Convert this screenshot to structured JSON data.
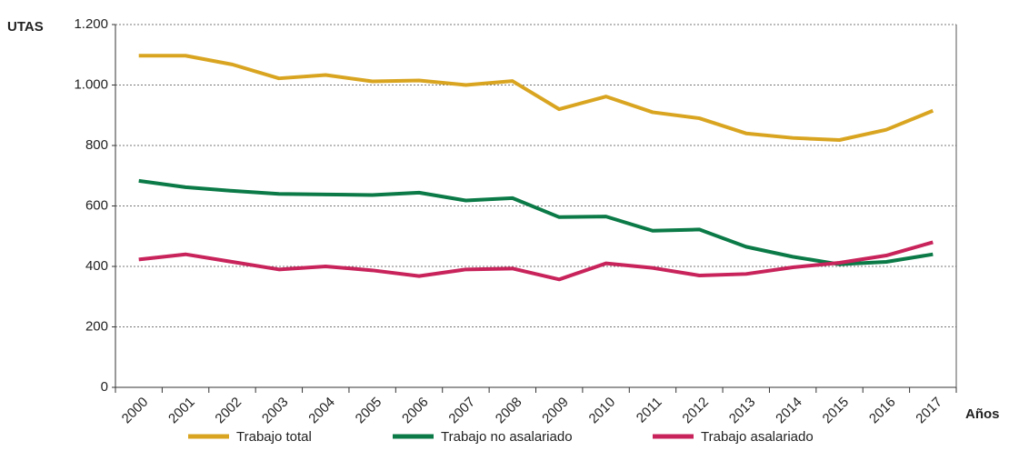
{
  "chart_data": {
    "type": "line",
    "ylabel": "UTAS",
    "xlabel": "Años",
    "categories": [
      "2000",
      "2001",
      "2002",
      "2003",
      "2004",
      "2005",
      "2006",
      "2007",
      "2008",
      "2009",
      "2010",
      "2011",
      "2012",
      "2013",
      "2014",
      "2015",
      "2016",
      "2017"
    ],
    "series": [
      {
        "name": "Trabajo total",
        "color": "#d9a521",
        "values": [
          1097,
          1097,
          1068,
          1022,
          1033,
          1012,
          1015,
          1000,
          1013,
          920,
          962,
          910,
          890,
          840,
          825,
          818,
          852,
          915
        ]
      },
      {
        "name": "Trabajo no asalariado",
        "color": "#0b7a47",
        "values": [
          683,
          662,
          650,
          640,
          638,
          636,
          644,
          618,
          626,
          563,
          565,
          518,
          522,
          465,
          432,
          407,
          415,
          440
        ]
      },
      {
        "name": "Trabajo asalariado",
        "color": "#c8235a",
        "values": [
          423,
          440,
          415,
          390,
          400,
          387,
          368,
          390,
          393,
          357,
          410,
          395,
          370,
          375,
          397,
          412,
          436,
          480
        ]
      }
    ],
    "ylim": [
      0,
      1200
    ],
    "yticks": [
      0,
      200,
      400,
      600,
      800,
      {
        "value": 1000,
        "label": "1.000"
      },
      {
        "value": 1200,
        "label": "1.200"
      }
    ],
    "grid": true,
    "legend": "bottom"
  }
}
